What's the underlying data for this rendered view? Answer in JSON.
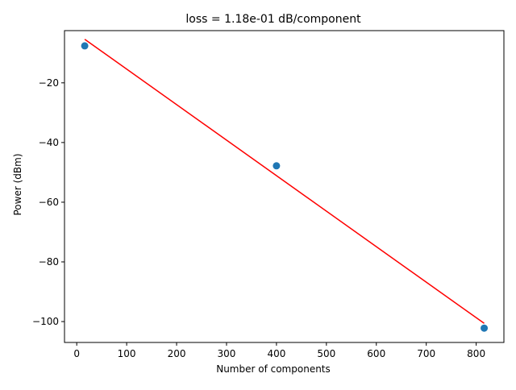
{
  "chart_data": {
    "type": "scatter",
    "title": "loss = 1.18e-01 dB/component",
    "xlabel": "Number of components",
    "ylabel": "Power (dBm)",
    "xlim": [
      -24.5,
      855.5
    ],
    "ylim": [
      -107,
      -2.5
    ],
    "xticks": [
      0,
      100,
      200,
      300,
      400,
      500,
      600,
      700,
      800
    ],
    "yticks": [
      -20,
      -40,
      -60,
      -80,
      -100
    ],
    "grid": false,
    "series": [
      {
        "kind": "scatter",
        "color": "#1f77b4",
        "x": [
          16,
          400,
          816
        ],
        "y": [
          -7.6,
          -47.8,
          -102.2
        ]
      },
      {
        "kind": "line",
        "color": "#ff0000",
        "x": [
          16,
          816
        ],
        "y": [
          -5.4,
          -100.6
        ]
      }
    ]
  }
}
